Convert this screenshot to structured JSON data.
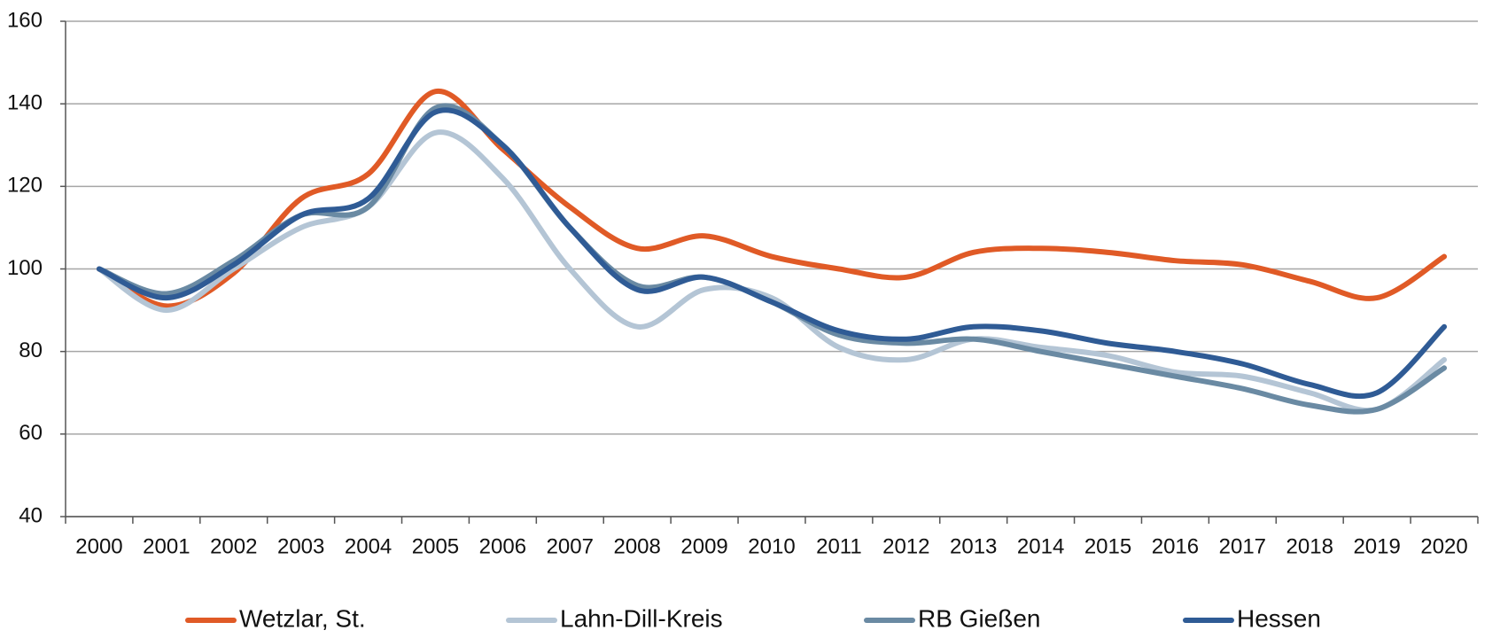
{
  "chart_data": {
    "type": "line",
    "categories": [
      "2000",
      "2001",
      "2002",
      "2003",
      "2004",
      "2005",
      "2006",
      "2007",
      "2008",
      "2009",
      "2010",
      "2011",
      "2012",
      "2013",
      "2014",
      "2015",
      "2016",
      "2017",
      "2018",
      "2019",
      "2020"
    ],
    "series": [
      {
        "name": "Wetzlar, St.",
        "color": "#e05a26",
        "values": [
          100,
          91,
          99,
          117,
          123,
          143,
          129,
          115,
          105,
          108,
          103,
          100,
          98,
          104,
          105,
          104,
          102,
          101,
          97,
          93,
          103
        ]
      },
      {
        "name": "Lahn-Dill-Kreis",
        "color": "#b4c5d5",
        "values": [
          100,
          90,
          100,
          110,
          115,
          133,
          122,
          100,
          86,
          95,
          93,
          81,
          78,
          83,
          81,
          79,
          75,
          74,
          70,
          66,
          78
        ]
      },
      {
        "name": "RB Gießen",
        "color": "#6a8aa3",
        "values": [
          100,
          94,
          102,
          113,
          115,
          139,
          130,
          110,
          96,
          98,
          92,
          84,
          82,
          83,
          80,
          77,
          74,
          71,
          67,
          66,
          76
        ]
      },
      {
        "name": "Hessen",
        "color": "#2f5b95",
        "values": [
          100,
          93,
          101,
          113,
          117,
          138,
          130,
          110,
          95,
          98,
          92,
          85,
          83,
          86,
          85,
          82,
          80,
          77,
          72,
          70,
          86
        ]
      }
    ],
    "ylim": [
      40,
      160
    ],
    "yticks": [
      40,
      60,
      80,
      100,
      120,
      140,
      160
    ],
    "grid": true,
    "legend": "bottom"
  }
}
